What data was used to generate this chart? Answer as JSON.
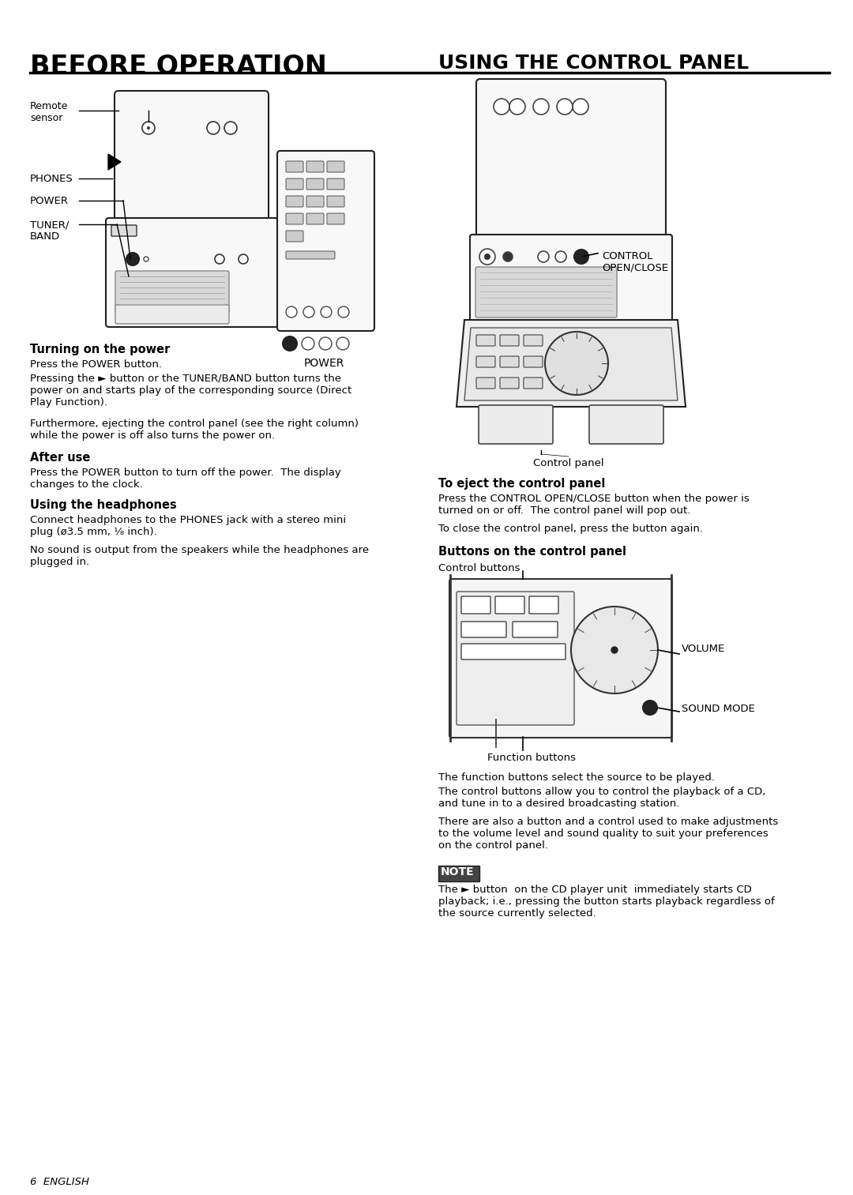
{
  "bg_color": "#ffffff",
  "title_left": "BEFORE OPERATION",
  "title_right": "USING THE CONTROL PANEL",
  "section_headers": {
    "turning_on": "Turning on the power",
    "after_use": "After use",
    "using_headphones": "Using the headphones",
    "eject_panel": "To eject the control panel",
    "buttons_panel": "Buttons on the control panel"
  },
  "body_texts": {
    "turning_on_1": "Press the POWER button.",
    "turning_on_2": "Pressing the ► button or the TUNER/BAND button turns the\npower on and starts play of the corresponding source (Direct\nPlay Function).",
    "turning_on_3": "Furthermore, ejecting the control panel (see the right column)\nwhile the power is off also turns the power on.",
    "after_use_1": "Press the POWER button to turn off the power.  The display\nchanges to the clock.",
    "headphones_1": "Connect headphones to the PHONES jack with a stereo mini\nplug (ø3.5 mm, ¹⁄₈ inch).",
    "headphones_2": "No sound is output from the speakers while the headphones are\nplugged in.",
    "eject_1": "Press the CONTROL OPEN/CLOSE button when the power is\nturned on or off.  The control panel will pop out.",
    "eject_2": "To close the control panel, press the button again.",
    "function_btns": "The function buttons select the source to be played.",
    "control_btns": "The control buttons allow you to control the playback of a CD,\nand tune in to a desired broadcasting station.",
    "adjustments": "There are also a button and a control used to make adjustments\nto the volume level and sound quality to suit your preferences\non the control panel.",
    "note_text": "The ► button  on the CD player unit  immediately starts CD\nplayback; i.e., pressing the button starts playback regardless of\nthe source currently selected."
  },
  "labels": {
    "remote_sensor": "Remote\nsensor",
    "phones": "PHONES",
    "power": "POWER",
    "tuner_band": "TUNER/\nBAND",
    "power_remote": "POWER",
    "control_open_close": "CONTROL\nOPEN/CLOSE",
    "control_panel": "Control panel",
    "control_buttons": "Control buttons",
    "function_buttons": "Function buttons",
    "volume": "VOLUME",
    "sound_mode": "SOUND MODE"
  },
  "footer_text": "6  ENGLISH",
  "note_label": "NOTE"
}
